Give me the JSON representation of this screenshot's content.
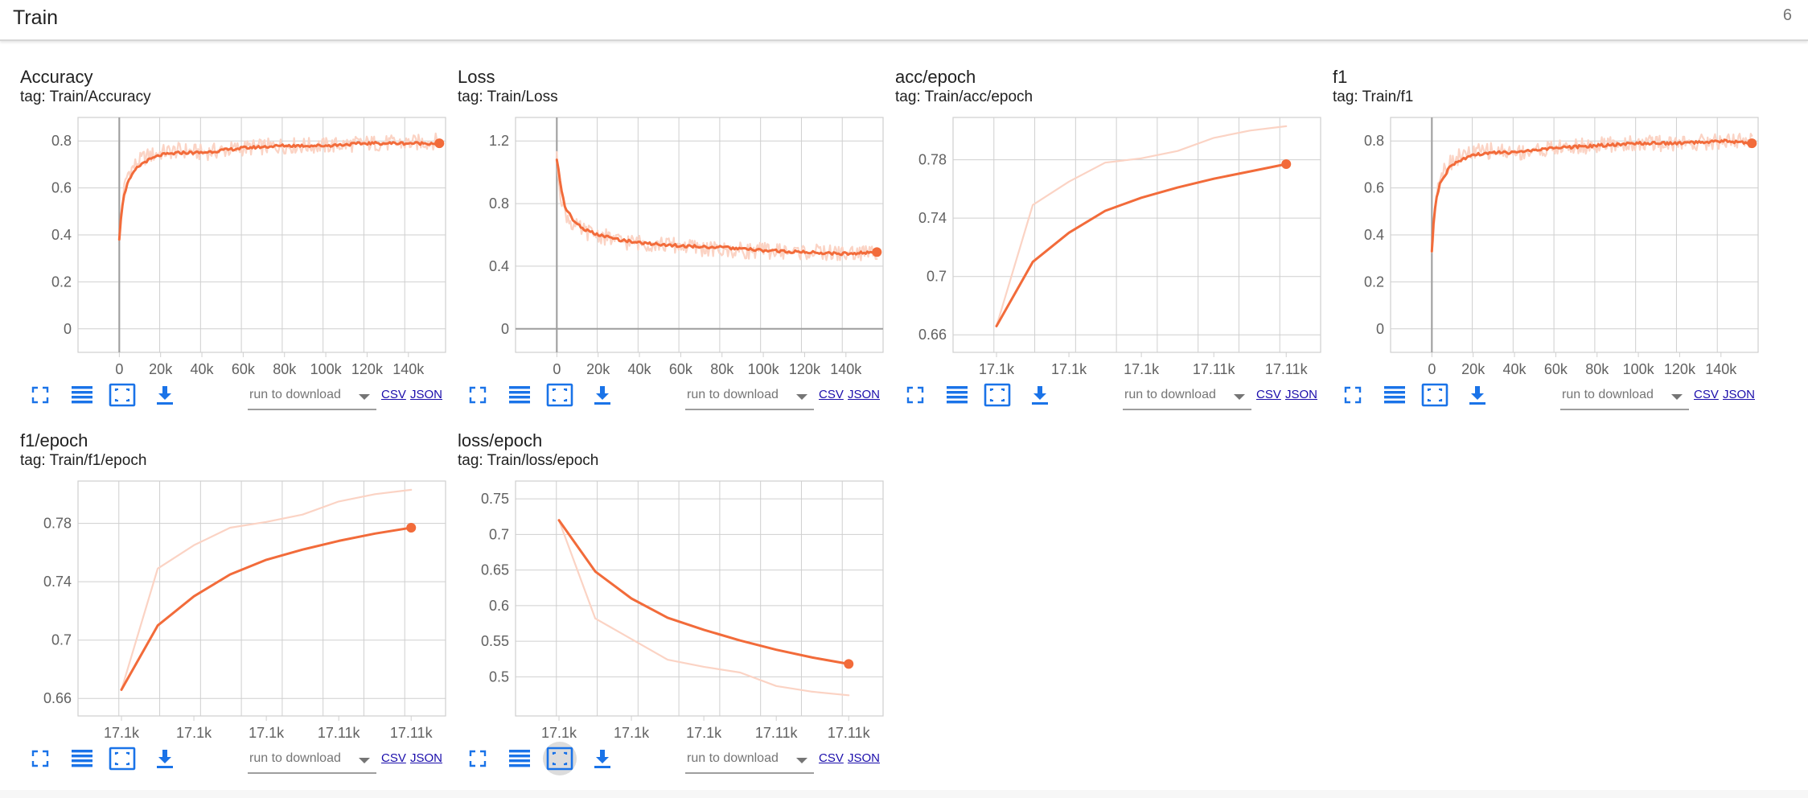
{
  "header": {
    "title": "Train",
    "count": "6"
  },
  "toolbar": {
    "run_select_label": "run to download",
    "csv_label": "CSV",
    "json_label": "JSON"
  },
  "theme": {
    "line_color": "#f26b3a",
    "raw_color": "#fbd3c4",
    "grid_color": "#cfcfcf"
  },
  "cards": [
    {
      "title": "Accuracy",
      "tag": "tag: Train/Accuracy",
      "chart_data": {
        "type": "line",
        "x_scale": "step",
        "ylim": [
          -0.1,
          0.9
        ],
        "yticks": [
          0,
          0.2,
          0.4,
          0.6,
          0.8
        ],
        "xlim": [
          -20000,
          158000
        ],
        "xtick_values": [
          0,
          20000,
          40000,
          60000,
          80000,
          100000,
          120000,
          140000
        ],
        "xtick_labels": [
          "0",
          "20k",
          "40k",
          "60k",
          "80k",
          "100k",
          "120k",
          "140k"
        ],
        "zero_x": true,
        "zero_y": false,
        "series": [
          {
            "kind": "smoothed",
            "x": [
              0,
              800,
              2000,
              4000,
              8000,
              12000,
              20000,
              30000,
              40000,
              60000,
              80000,
              100000,
              120000,
              140000,
              155000
            ],
            "y": [
              0.38,
              0.47,
              0.56,
              0.62,
              0.68,
              0.71,
              0.74,
              0.75,
              0.75,
              0.77,
              0.78,
              0.78,
              0.79,
              0.79,
              0.79
            ]
          },
          {
            "kind": "raw",
            "x": [
              0,
              2000,
              4000,
              8000,
              12000,
              20000,
              30000,
              40000,
              60000,
              80000,
              100000,
              120000,
              140000,
              155000
            ],
            "y": [
              0.38,
              0.58,
              0.66,
              0.7,
              0.73,
              0.75,
              0.76,
              0.75,
              0.77,
              0.78,
              0.78,
              0.79,
              0.79,
              0.8
            ]
          }
        ],
        "endpoint": {
          "x": 155000,
          "y": 0.79
        }
      }
    },
    {
      "title": "Loss",
      "tag": "tag: Train/Loss",
      "chart_data": {
        "type": "line",
        "x_scale": "step",
        "ylim": [
          -0.15,
          1.35
        ],
        "yticks": [
          0,
          0.4,
          0.8,
          1.2
        ],
        "xlim": [
          -20000,
          158000
        ],
        "xtick_values": [
          0,
          20000,
          40000,
          60000,
          80000,
          100000,
          120000,
          140000
        ],
        "xtick_labels": [
          "0",
          "20k",
          "40k",
          "60k",
          "80k",
          "100k",
          "120k",
          "140k"
        ],
        "zero_x": true,
        "zero_y": true,
        "series": [
          {
            "kind": "smoothed",
            "x": [
              0,
              800,
              2000,
              4000,
              8000,
              14000,
              20000,
              30000,
              40000,
              60000,
              80000,
              100000,
              120000,
              140000,
              155000
            ],
            "y": [
              1.08,
              1.02,
              0.9,
              0.78,
              0.69,
              0.63,
              0.6,
              0.57,
              0.55,
              0.53,
              0.52,
              0.5,
              0.49,
              0.48,
              0.49
            ]
          },
          {
            "kind": "raw",
            "x": [
              0,
              2000,
              4000,
              8000,
              14000,
              20000,
              30000,
              40000,
              60000,
              80000,
              100000,
              120000,
              140000,
              155000
            ],
            "y": [
              1.08,
              0.85,
              0.74,
              0.66,
              0.62,
              0.6,
              0.56,
              0.55,
              0.53,
              0.5,
              0.5,
              0.49,
              0.48,
              0.49
            ]
          }
        ],
        "endpoint": {
          "x": 155000,
          "y": 0.49
        }
      }
    },
    {
      "title": "acc/epoch",
      "tag": "tag: Train/acc/epoch",
      "chart_data": {
        "type": "line",
        "x_scale": "index",
        "ylim": [
          0.648,
          0.809
        ],
        "yticks": [
          0.66,
          0.7,
          0.74,
          0.78
        ],
        "ytick_labels": [
          "0.66",
          "0.7",
          "0.74",
          "0.78"
        ],
        "xlim": [
          -1.2,
          8.95
        ],
        "xtick_values": [
          0,
          2,
          4,
          6,
          8
        ],
        "xtick_labels": [
          "17.1k",
          "17.1k",
          "17.1k",
          "17.11k",
          "17.11k"
        ],
        "zero_x": false,
        "zero_y": false,
        "series": [
          {
            "kind": "smoothed",
            "x": [
              0,
              1,
              2,
              3,
              4,
              5,
              6,
              7,
              8
            ],
            "y": [
              0.666,
              0.71,
              0.73,
              0.745,
              0.754,
              0.761,
              0.767,
              0.772,
              0.777
            ]
          },
          {
            "kind": "raw",
            "x": [
              0,
              1,
              2,
              3,
              4,
              5,
              6,
              7,
              8
            ],
            "y": [
              0.666,
              0.749,
              0.765,
              0.778,
              0.781,
              0.786,
              0.795,
              0.8,
              0.803
            ]
          }
        ],
        "endpoint": {
          "x": 8,
          "y": 0.777
        }
      }
    },
    {
      "title": "f1",
      "tag": "tag: Train/f1",
      "chart_data": {
        "type": "line",
        "x_scale": "step",
        "ylim": [
          -0.1,
          0.9
        ],
        "yticks": [
          0,
          0.2,
          0.4,
          0.6,
          0.8
        ],
        "xlim": [
          -20000,
          158000
        ],
        "xtick_values": [
          0,
          20000,
          40000,
          60000,
          80000,
          100000,
          120000,
          140000
        ],
        "xtick_labels": [
          "0",
          "20k",
          "40k",
          "60k",
          "80k",
          "100k",
          "120k",
          "140k"
        ],
        "zero_x": true,
        "zero_y": false,
        "series": [
          {
            "kind": "smoothed",
            "x": [
              0,
              800,
              2000,
              4000,
              8000,
              12000,
              20000,
              30000,
              40000,
              60000,
              80000,
              100000,
              120000,
              140000,
              155000
            ],
            "y": [
              0.33,
              0.45,
              0.55,
              0.62,
              0.68,
              0.71,
              0.74,
              0.75,
              0.75,
              0.77,
              0.78,
              0.79,
              0.79,
              0.8,
              0.79
            ]
          },
          {
            "kind": "raw",
            "x": [
              0,
              2000,
              4000,
              8000,
              12000,
              20000,
              30000,
              40000,
              60000,
              80000,
              100000,
              120000,
              140000,
              155000
            ],
            "y": [
              0.3,
              0.58,
              0.66,
              0.7,
              0.73,
              0.75,
              0.76,
              0.75,
              0.77,
              0.78,
              0.79,
              0.79,
              0.8,
              0.8
            ]
          }
        ],
        "endpoint": {
          "x": 155000,
          "y": 0.79
        }
      }
    },
    {
      "title": "f1/epoch",
      "tag": "tag: Train/f1/epoch",
      "chart_data": {
        "type": "line",
        "x_scale": "index",
        "ylim": [
          0.648,
          0.809
        ],
        "yticks": [
          0.66,
          0.7,
          0.74,
          0.78
        ],
        "ytick_labels": [
          "0.66",
          "0.7",
          "0.74",
          "0.78"
        ],
        "xlim": [
          -1.2,
          8.95
        ],
        "xtick_values": [
          0,
          2,
          4,
          6,
          8
        ],
        "xtick_labels": [
          "17.1k",
          "17.1k",
          "17.1k",
          "17.11k",
          "17.11k"
        ],
        "zero_x": false,
        "zero_y": false,
        "series": [
          {
            "kind": "smoothed",
            "x": [
              0,
              1,
              2,
              3,
              4,
              5,
              6,
              7,
              8
            ],
            "y": [
              0.666,
              0.71,
              0.73,
              0.745,
              0.755,
              0.762,
              0.768,
              0.773,
              0.777
            ]
          },
          {
            "kind": "raw",
            "x": [
              0,
              1,
              2,
              3,
              4,
              5,
              6,
              7,
              8
            ],
            "y": [
              0.666,
              0.749,
              0.765,
              0.777,
              0.781,
              0.786,
              0.795,
              0.8,
              0.803
            ]
          }
        ],
        "endpoint": {
          "x": 8,
          "y": 0.777
        }
      }
    },
    {
      "title": "loss/epoch",
      "tag": "tag: Train/loss/epoch",
      "chart_data": {
        "type": "line",
        "x_scale": "index",
        "ylim": [
          0.445,
          0.775
        ],
        "yticks": [
          0.5,
          0.55,
          0.6,
          0.65,
          0.7,
          0.75
        ],
        "ytick_labels": [
          "0.5",
          "0.55",
          "0.6",
          "0.65",
          "0.7",
          "0.75"
        ],
        "xlim": [
          -1.2,
          8.95
        ],
        "xtick_values": [
          0,
          2,
          4,
          6,
          8
        ],
        "xtick_labels": [
          "17.1k",
          "17.1k",
          "17.1k",
          "17.11k",
          "17.11k"
        ],
        "zero_x": false,
        "zero_y": false,
        "series": [
          {
            "kind": "smoothed",
            "x": [
              0,
              1,
              2,
              3,
              4,
              5,
              6,
              7,
              8
            ],
            "y": [
              0.72,
              0.648,
              0.61,
              0.583,
              0.566,
              0.551,
              0.538,
              0.527,
              0.518
            ]
          },
          {
            "kind": "raw",
            "x": [
              0,
              1,
              2,
              3,
              4,
              5,
              6,
              7,
              8
            ],
            "y": [
              0.72,
              0.582,
              0.553,
              0.524,
              0.514,
              0.506,
              0.487,
              0.479,
              0.474
            ]
          }
        ],
        "endpoint": {
          "x": 8,
          "y": 0.518
        }
      }
    }
  ]
}
